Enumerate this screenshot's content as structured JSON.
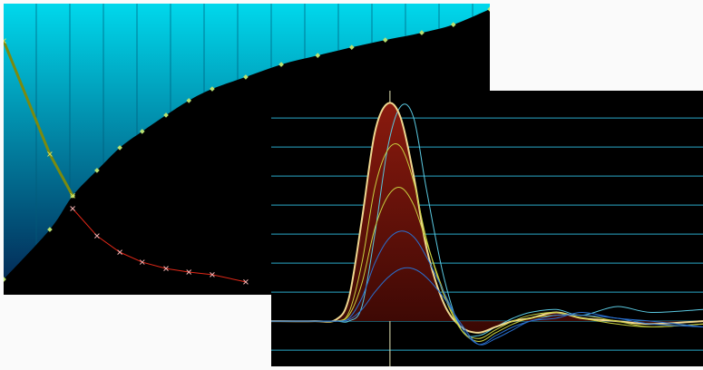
{
  "chart_data": [
    {
      "type": "area",
      "xlim": [
        0,
        100
      ],
      "ylim": [
        0,
        100
      ],
      "background": "#000000",
      "series": [
        {
          "type": "area",
          "fill": "above",
          "color": "#00d8ec",
          "marker_color": "#b8e070",
          "x": [
            0,
            9.5,
            14.2,
            19.2,
            23.9,
            28.5,
            33.4,
            38.1,
            42.9,
            49.8,
            57.1,
            64.6,
            71.6,
            78.5,
            86.0,
            92.5,
            100
          ],
          "values": [
            5.3,
            22.4,
            34.0,
            42.7,
            50.5,
            56.1,
            61.7,
            66.7,
            70.7,
            74.8,
            79.1,
            82.2,
            85.0,
            87.5,
            90.0,
            92.8,
            98.1
          ]
        },
        {
          "type": "line",
          "color": "#7a8a10",
          "marker_color": "#d0e060",
          "width": 3,
          "x": [
            0,
            9.5,
            14.2
          ],
          "values": [
            87.2,
            48.3,
            34.0
          ]
        },
        {
          "type": "line",
          "color": "#e02818",
          "marker_color": "#f0b0b0",
          "width": 1,
          "x": [
            14.2,
            19.2,
            23.9,
            28.5,
            33.4,
            38.1,
            42.9,
            49.8
          ],
          "values": [
            29.6,
            20.2,
            14.6,
            11.2,
            9.0,
            7.8,
            6.9,
            4.4
          ]
        }
      ]
    },
    {
      "type": "line",
      "xlim": [
        0,
        100
      ],
      "ylim": [
        -1.56,
        7.94
      ],
      "yticks": [
        -1,
        0,
        1,
        2,
        3,
        4,
        5,
        6,
        7
      ],
      "grid": true,
      "grid_color": "#2aa8c8",
      "background": "#000000",
      "vline": 27.5,
      "vline_color": "#e8e8b8",
      "x": [
        0,
        10,
        15,
        18,
        21,
        24,
        27,
        30,
        33,
        36,
        40,
        44,
        48,
        52,
        56,
        60,
        66,
        72,
        80,
        88,
        100
      ],
      "series": [
        {
          "color": "#5ac8e0",
          "values": [
            0,
            0,
            0,
            0,
            0.5,
            3.0,
            6.0,
            7.4,
            7.0,
            4.5,
            1.5,
            -0.3,
            -0.5,
            -0.2,
            0.1,
            0.3,
            0.4,
            0.2,
            0.5,
            0.3,
            0.4
          ]
        },
        {
          "color": "#f0d890",
          "fill": "below",
          "fill_color": "#8a1a0e",
          "values": [
            0,
            0,
            0.05,
            0.8,
            3.5,
            6.5,
            7.5,
            7.0,
            5.0,
            2.5,
            0.6,
            -0.2,
            -0.4,
            -0.2,
            0,
            0.1,
            0.3,
            0.1,
            0,
            -0.1,
            0
          ]
        },
        {
          "color": "#c8d040",
          "values": [
            0,
            0,
            0,
            0.3,
            2.0,
            4.6,
            5.9,
            6.0,
            4.8,
            2.8,
            0.9,
            -0.3,
            -0.6,
            -0.3,
            0,
            0.2,
            0.3,
            0.1,
            -0.1,
            -0.2,
            -0.1
          ]
        },
        {
          "color": "#c8d040",
          "values": [
            0,
            0,
            0,
            0.2,
            1.3,
            3.2,
            4.3,
            4.6,
            4.0,
            2.7,
            1.0,
            -0.3,
            -0.7,
            -0.4,
            -0.1,
            0.1,
            0.2,
            0.2,
            0,
            -0.2,
            -0.1
          ]
        },
        {
          "color": "#2a70d0",
          "values": [
            0,
            0,
            0,
            0.1,
            0.8,
            2.0,
            2.8,
            3.1,
            2.9,
            2.2,
            1.0,
            -0.2,
            -0.8,
            -0.5,
            -0.2,
            0,
            0.2,
            0.2,
            0.1,
            -0.1,
            -0.2
          ]
        },
        {
          "color": "#2a70d0",
          "values": [
            0,
            0,
            0,
            0.05,
            0.4,
            1.0,
            1.5,
            1.8,
            1.8,
            1.5,
            0.8,
            -0.1,
            -0.8,
            -0.6,
            -0.3,
            0,
            0.1,
            0.3,
            0.1,
            0,
            -0.2
          ]
        }
      ]
    }
  ]
}
